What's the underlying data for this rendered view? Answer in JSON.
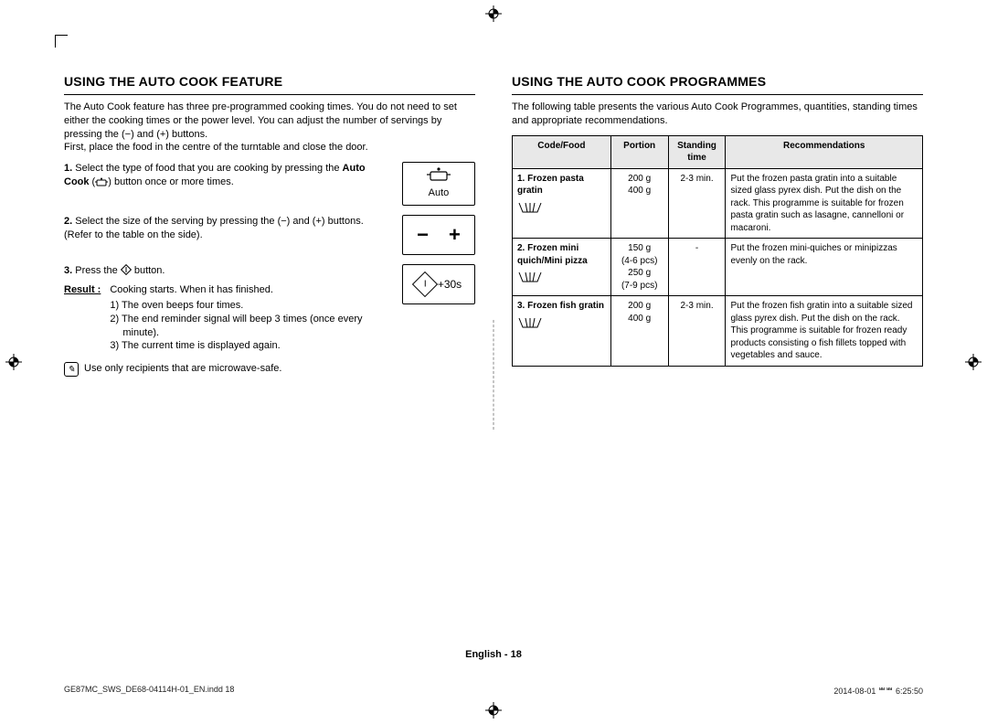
{
  "left": {
    "heading": "USING THE AUTO COOK FEATURE",
    "intro": "The Auto Cook feature has three pre-programmed cooking times. You do not need to set either the cooking times or the power level. You can adjust the number of servings by pressing the (−) and (+) buttons.\nFirst, place the food in the centre of the turntable and close the door.",
    "steps": [
      {
        "n": "1.",
        "text_a": "Select the type of food that you are cooking by pressing the ",
        "bold": "Auto Cook",
        "text_b": " (",
        "text_c": ") button once or more times."
      },
      {
        "n": "2.",
        "text": "Select the size of the serving by pressing the (−) and (+) buttons. (Refer to the table on the side)."
      },
      {
        "n": "3.",
        "text": "Press the ",
        "text2": " button."
      }
    ],
    "auto_label": "Auto",
    "plus30": "+30s",
    "result_label": "Result :",
    "result_intro": "Cooking starts. When it has finished.",
    "result_items": [
      "1)  The oven beeps four times.",
      "2)  The end reminder signal will beep 3 times (once every minute).",
      "3)  The current time is displayed again."
    ],
    "note": "Use only recipients that are microwave-safe."
  },
  "right": {
    "heading": "USING THE AUTO COOK PROGRAMMES",
    "intro": "The following table presents the various Auto Cook Programmes, quantities, standing times and appropriate recommendations.",
    "cols": [
      "Code/Food",
      "Portion",
      "Standing time",
      "Recommendations"
    ],
    "col_widths": [
      "24%",
      "14%",
      "14%",
      "48%"
    ],
    "rows": [
      {
        "code": "1.",
        "food": "Frozen pasta gratin",
        "portion": "200 g\n400 g",
        "standing": "2-3 min.",
        "rec": "Put the frozen pasta gratin into a suitable sized glass pyrex dish. Put the dish on the rack. This programme is suitable for frozen pasta gratin such as lasagne, cannelloni or macaroni."
      },
      {
        "code": "2.",
        "food": "Frozen mini quich/Mini pizza",
        "portion": "150 g\n(4-6 pcs)\n250 g\n(7-9 pcs)",
        "standing": "-",
        "rec": "Put the frozen mini-quiches or minipizzas evenly on the rack."
      },
      {
        "code": "3.",
        "food": "Frozen fish gratin",
        "portion": "200 g\n400 g",
        "standing": "2-3 min.",
        "rec": "Put the frozen fish gratin into a suitable sized glass pyrex dish. Put the dish on the rack. This programme is suitable for frozen ready products consisting o fish fillets topped with vegetables and sauce."
      }
    ]
  },
  "footer": "English - 18",
  "printfile": "GE87MC_SWS_DE68-04114H-01_EN.indd   18",
  "printtime": "2014-08-01   ᄈᄈ 6:25:50"
}
